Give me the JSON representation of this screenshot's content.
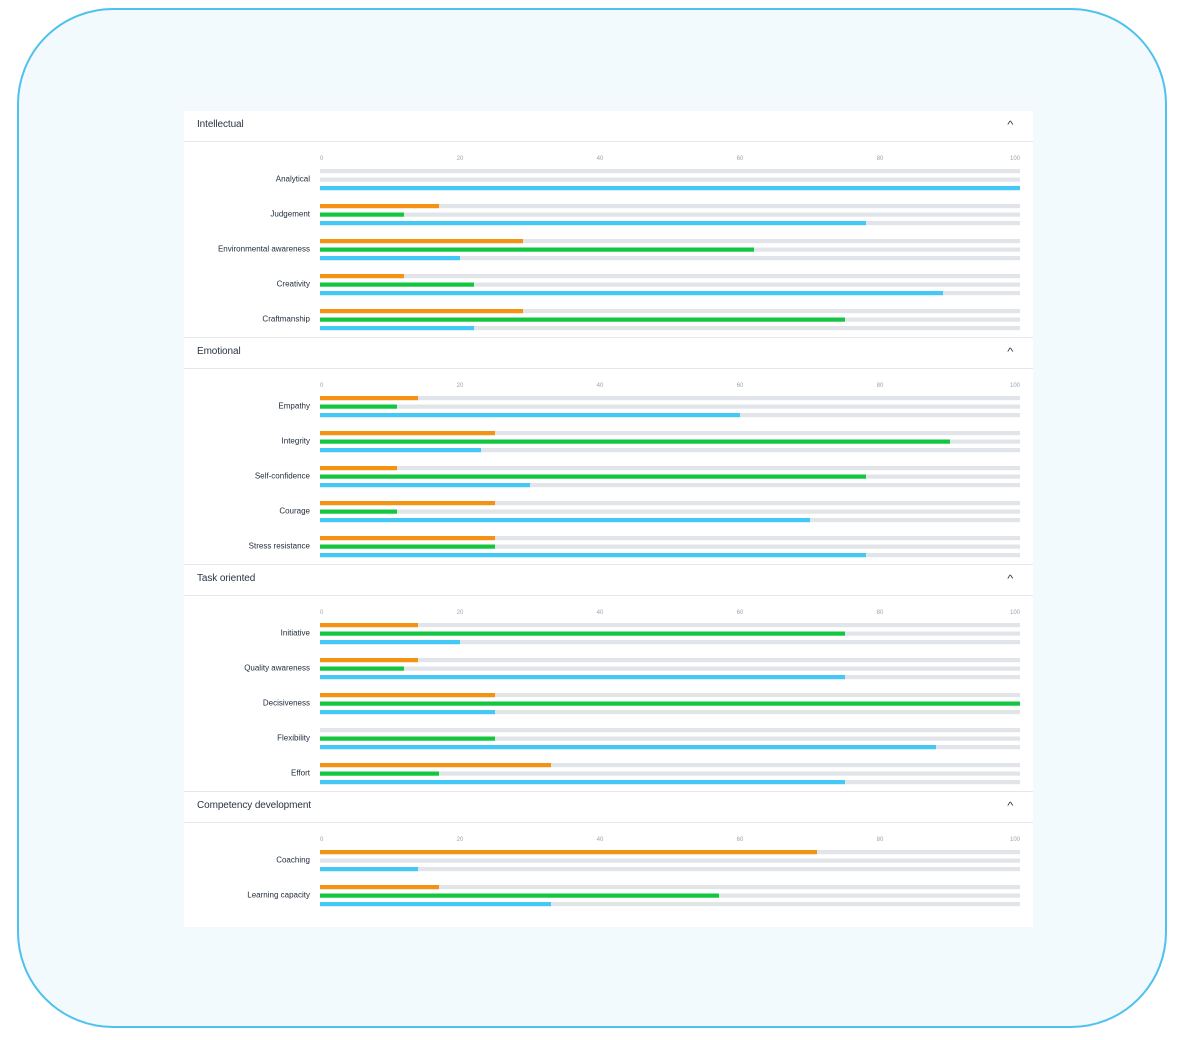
{
  "colors": {
    "orange": "#f39213",
    "green": "#12c640",
    "blue": "#44c8f5",
    "track": "#e1e5e9"
  },
  "icons": {
    "collapse": "chevron-up-icon"
  },
  "chart_data": {
    "type": "bar",
    "orientation": "horizontal",
    "xlim": [
      0,
      100
    ],
    "ticks": [
      "0",
      "20",
      "40",
      "60",
      "80",
      "100"
    ],
    "groups": [
      {
        "title": "Intellectual",
        "chevron": "^",
        "rows": [
          {
            "label": "Analytical",
            "values": [
              0,
              0,
              100
            ]
          },
          {
            "label": "Judgement",
            "values": [
              17,
              12,
              78
            ]
          },
          {
            "label": "Environmental awareness",
            "values": [
              29,
              62,
              20
            ]
          },
          {
            "label": "Creativity",
            "values": [
              12,
              22,
              89
            ]
          },
          {
            "label": "Craftmanship",
            "values": [
              29,
              75,
              22
            ]
          }
        ]
      },
      {
        "title": "Emotional",
        "chevron": "^",
        "rows": [
          {
            "label": "Empathy",
            "values": [
              14,
              11,
              60
            ]
          },
          {
            "label": "Integrity",
            "values": [
              25,
              90,
              23
            ]
          },
          {
            "label": "Self-confidence",
            "values": [
              11,
              78,
              30
            ]
          },
          {
            "label": "Courage",
            "values": [
              25,
              11,
              70
            ]
          },
          {
            "label": "Stress resistance",
            "values": [
              25,
              25,
              78
            ]
          }
        ]
      },
      {
        "title": "Task oriented",
        "chevron": "^",
        "rows": [
          {
            "label": "Initiative",
            "values": [
              14,
              75,
              20
            ]
          },
          {
            "label": "Quality awareness",
            "values": [
              14,
              12,
              75
            ]
          },
          {
            "label": "Decisiveness",
            "values": [
              25,
              100,
              25
            ]
          },
          {
            "label": "Flexibility",
            "values": [
              0,
              25,
              88
            ]
          },
          {
            "label": "Effort",
            "values": [
              33,
              17,
              75
            ]
          }
        ]
      },
      {
        "title": "Competency development",
        "chevron": "^",
        "rows": [
          {
            "label": "Coaching",
            "values": [
              71,
              0,
              14
            ]
          },
          {
            "label": "Learning capacity",
            "values": [
              17,
              57,
              33
            ]
          }
        ]
      }
    ]
  }
}
